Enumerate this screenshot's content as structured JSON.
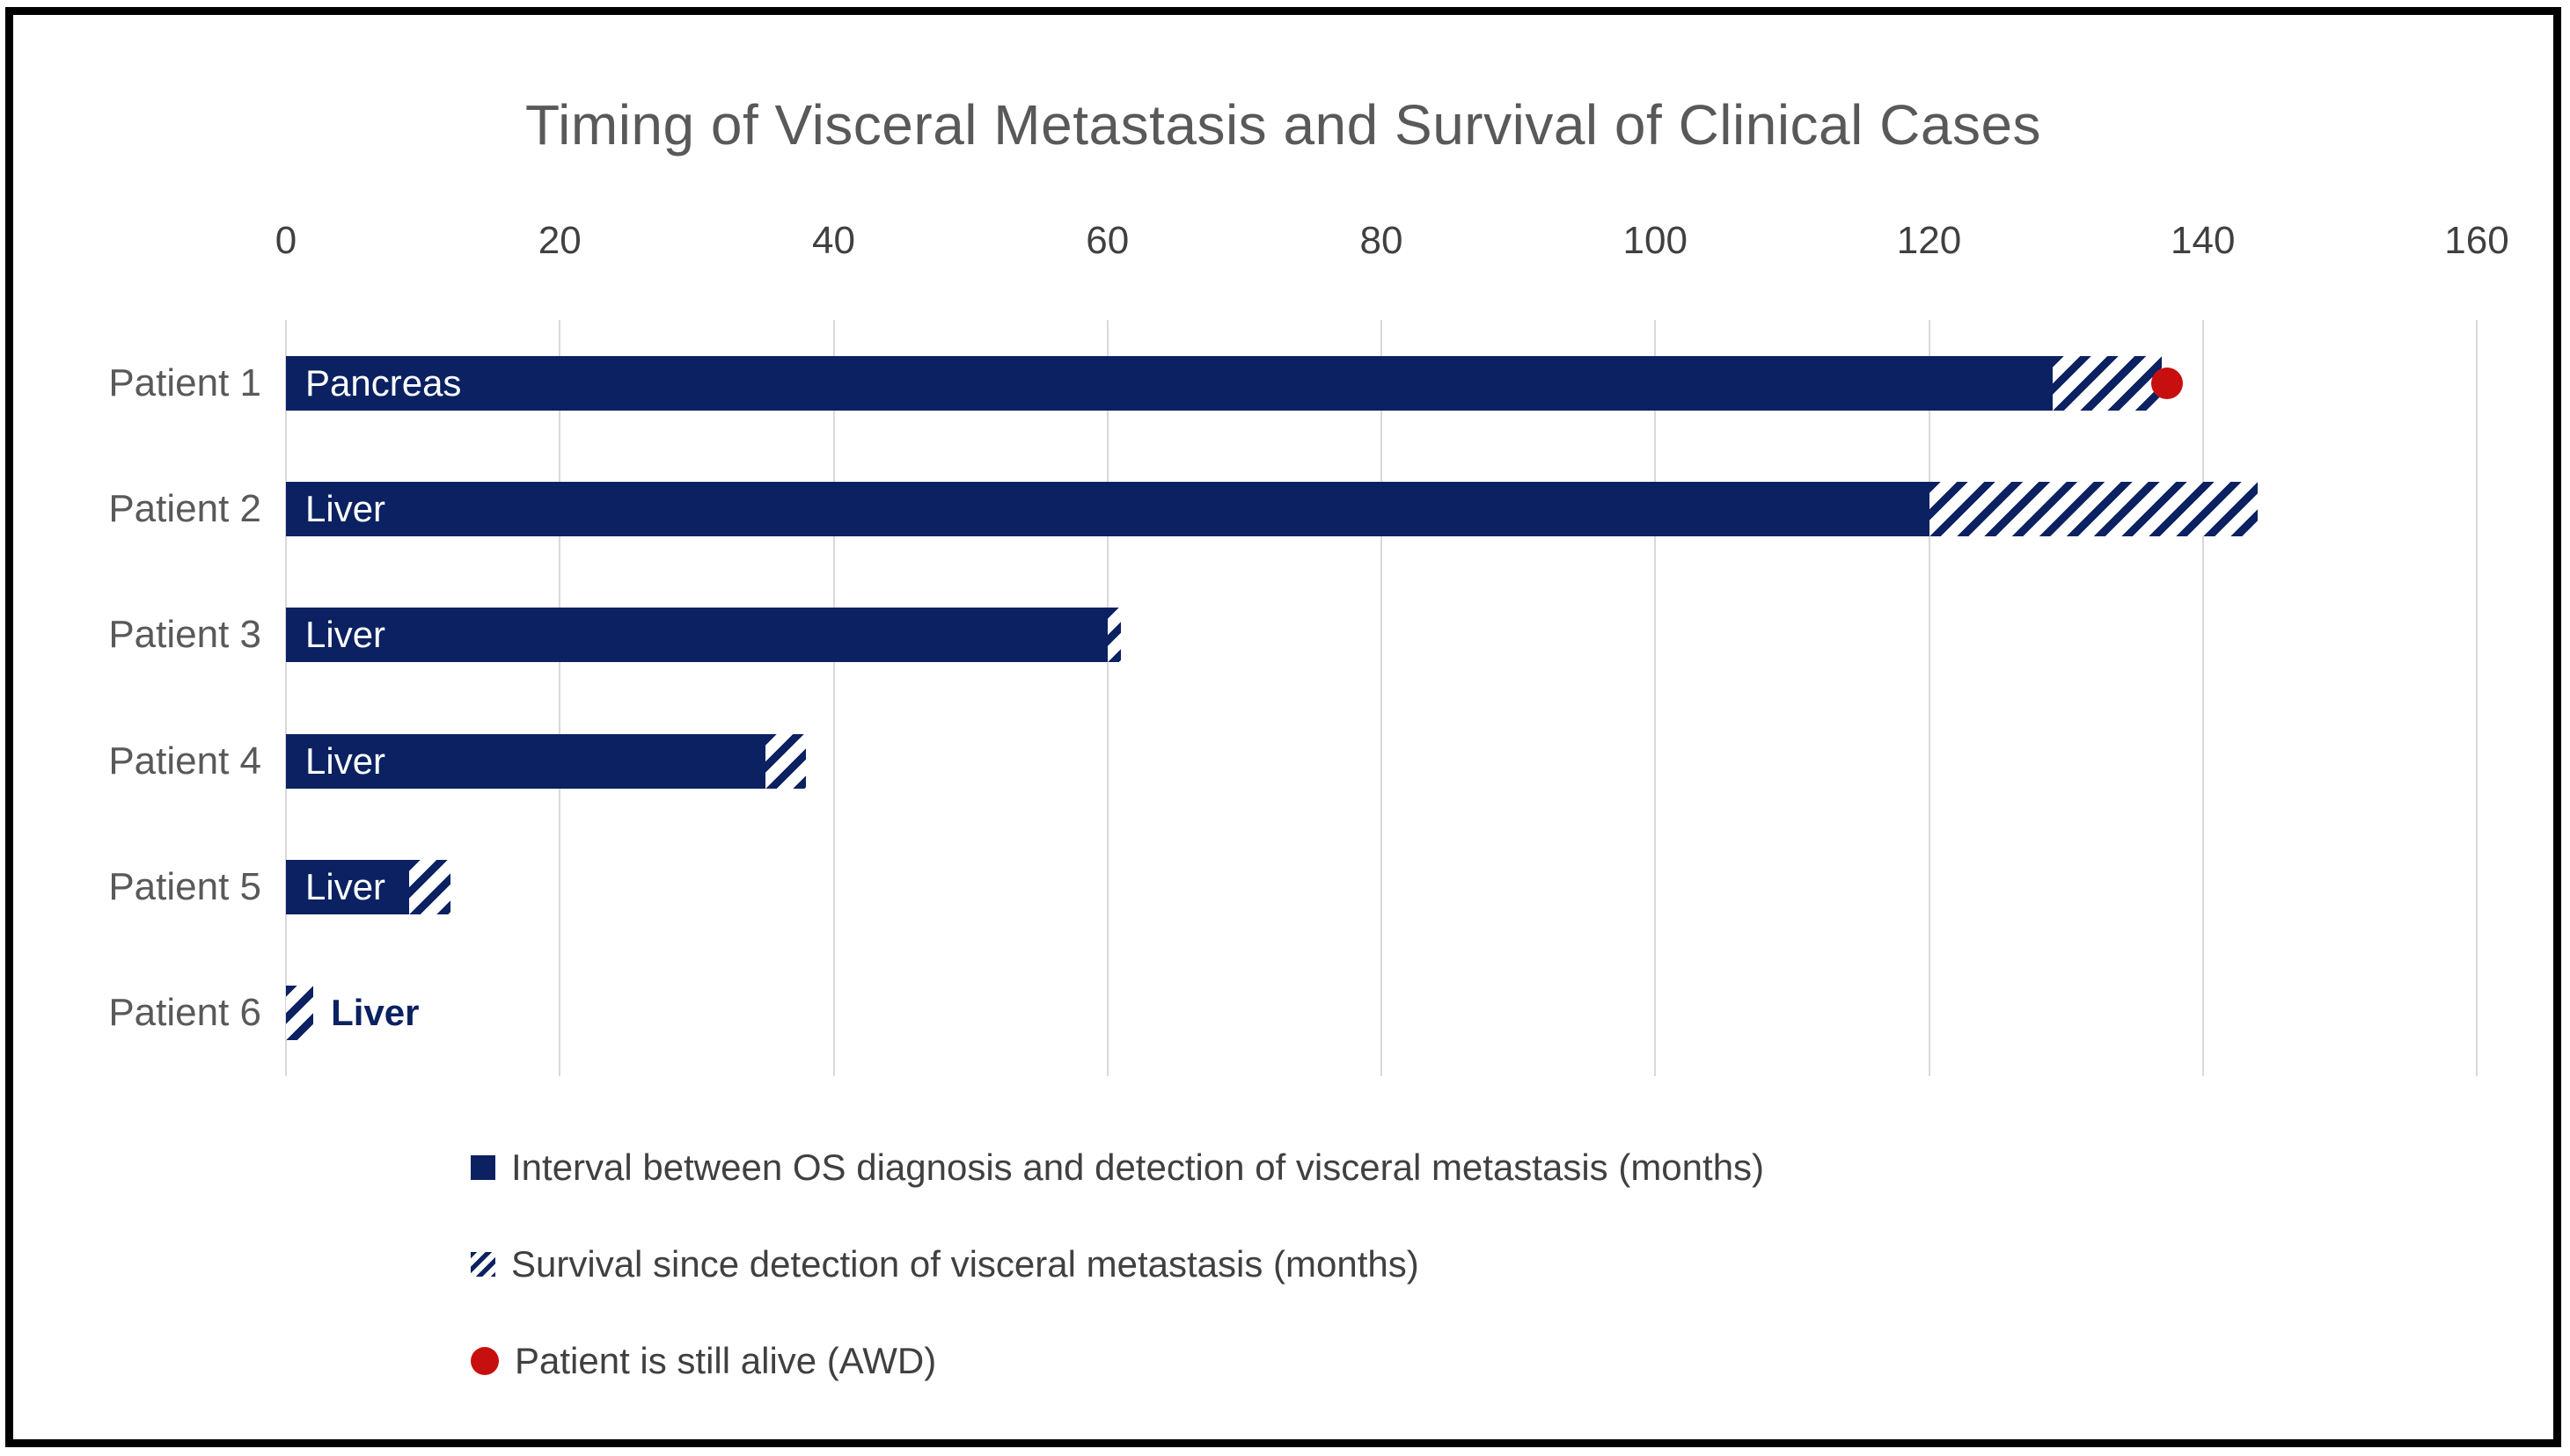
{
  "chart_data": {
    "type": "bar",
    "orientation": "horizontal",
    "title": "Timing of Visceral Metastasis and Survival of Clinical Cases",
    "xlabel": "",
    "ylabel": "",
    "x_axis": {
      "min": 0,
      "max": 160,
      "tick_interval": 20,
      "tick_labels": [
        "0",
        "20",
        "40",
        "60",
        "80",
        "100",
        "120",
        "140",
        "160"
      ]
    },
    "grid": true,
    "categories": [
      "Patient 1",
      "Patient 2",
      "Patient 3",
      "Patient 4",
      "Patient 5",
      "Patient 6"
    ],
    "bar_site_labels": [
      "Pancreas",
      "Liver",
      "Liver",
      "Liver",
      "Liver",
      "Liver"
    ],
    "series": [
      {
        "name": "Interval between OS diagnosis and detection of visceral metastasis (months)",
        "style": "solid",
        "values": [
          129,
          120,
          60,
          35,
          9,
          0
        ]
      },
      {
        "name": "Survival since detection of visceral metastasis (months)",
        "style": "hatched",
        "values": [
          8,
          24,
          1,
          3,
          3,
          2
        ]
      }
    ],
    "totals": [
      137,
      144,
      61,
      38,
      12,
      2
    ],
    "markers": [
      {
        "category": "Patient 1",
        "value": 137,
        "style": "red-dot",
        "label": "Patient is still alive (AWD)"
      }
    ],
    "legend_position": "bottom-left",
    "legend": [
      {
        "swatch": "solid-square",
        "label": "Interval between OS diagnosis and detection of visceral metastasis (months)"
      },
      {
        "swatch": "hatched-square",
        "label": "Survival since detection of visceral metastasis (months)"
      },
      {
        "swatch": "red-dot",
        "label": "Patient is still alive (AWD)"
      }
    ],
    "colors": {
      "bar_navy": "#0b2161",
      "alive_red": "#c80f10",
      "gridline": "#d9d9d9",
      "title_text": "#595959",
      "axis_text": "#404040",
      "category_text": "#595959",
      "background": "#ffffff",
      "frame_border": "#000000"
    }
  }
}
